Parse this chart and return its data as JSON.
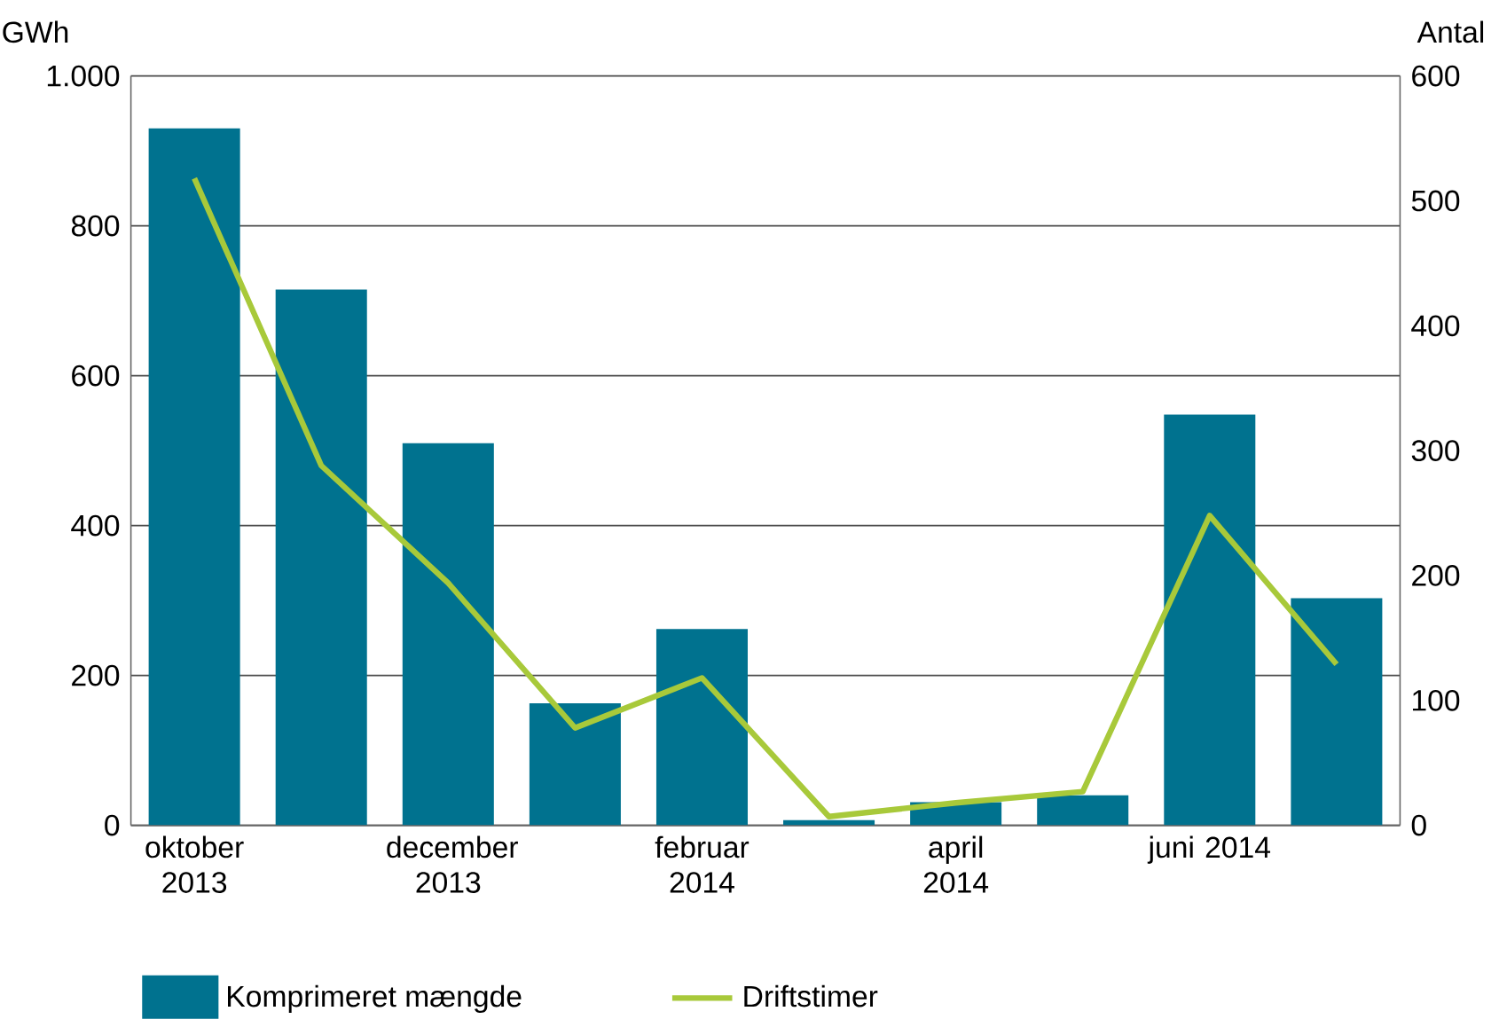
{
  "chart_data": {
    "type": "bar",
    "categories": [
      "oktober 2013",
      null,
      "december 2013",
      null,
      "februar 2014",
      null,
      "april 2014",
      null,
      "juni 2014",
      null
    ],
    "ylabel": "GWh",
    "y2label": "Antal",
    "series": [
      {
        "name": "Komprimeret mængde",
        "color": "#00728f",
        "values": [
          930,
          715,
          510,
          163,
          262,
          7,
          31,
          40,
          548,
          303
        ]
      },
      {
        "name": "Driftstimer",
        "type": "line",
        "axis": "y2",
        "color": "#a8c93a",
        "values": [
          518,
          288,
          194,
          78,
          118,
          7,
          18,
          27,
          248,
          129
        ]
      }
    ],
    "ylim": [
      0,
      1000
    ],
    "yticks": [
      0,
      200,
      400,
      600,
      800,
      {
        "value": 1000,
        "label": "1.000"
      }
    ],
    "y2lim": [
      0,
      600
    ],
    "y2ticks": [
      0,
      100,
      200,
      300,
      400,
      500,
      600
    ],
    "grid": "y",
    "legend": "bottom",
    "marker": "none",
    "line_style": "solid"
  }
}
